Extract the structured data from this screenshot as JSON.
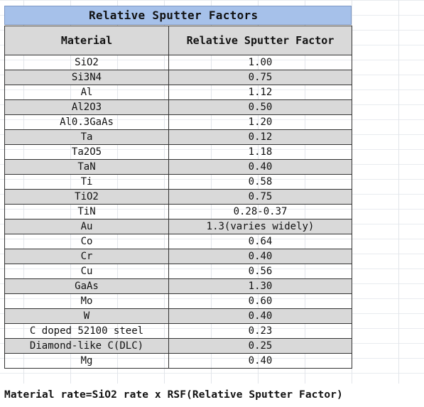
{
  "title": "Relative Sputter Factors",
  "table": {
    "headers": [
      "Material",
      "Relative Sputter Factor"
    ],
    "rows": [
      {
        "material": "SiO2",
        "factor": "1.00"
      },
      {
        "material": "Si3N4",
        "factor": "0.75"
      },
      {
        "material": "Al",
        "factor": "1.12"
      },
      {
        "material": "Al2O3",
        "factor": "0.50"
      },
      {
        "material": "Al0.3GaAs",
        "factor": "1.20"
      },
      {
        "material": "Ta",
        "factor": "0.12"
      },
      {
        "material": "Ta2O5",
        "factor": "1.18"
      },
      {
        "material": "TaN",
        "factor": "0.40"
      },
      {
        "material": "Ti",
        "factor": "0.58"
      },
      {
        "material": "TiO2",
        "factor": "0.75"
      },
      {
        "material": "TiN",
        "factor": "0.28-0.37"
      },
      {
        "material": "Au",
        "factor": "1.3(varies widely)"
      },
      {
        "material": "Co",
        "factor": "0.64"
      },
      {
        "material": "Cr",
        "factor": "0.40"
      },
      {
        "material": "Cu",
        "factor": "0.56"
      },
      {
        "material": "GaAs",
        "factor": "1.30"
      },
      {
        "material": "Mo",
        "factor": "0.60"
      },
      {
        "material": "W",
        "factor": "0.40"
      },
      {
        "material": "C doped 52100 steel",
        "factor": "0.23"
      },
      {
        "material": "Diamond-like C(DLC)",
        "factor": "0.25"
      },
      {
        "material": "Mg",
        "factor": "0.40"
      }
    ]
  },
  "footer_note": "Material rate=SiO2 rate x RSF(Relative Sputter Factor)",
  "colors": {
    "title_fill": "#a6c1ea",
    "header_fill": "#d9d9d9",
    "alt_row_fill": "#d9d9d9"
  }
}
